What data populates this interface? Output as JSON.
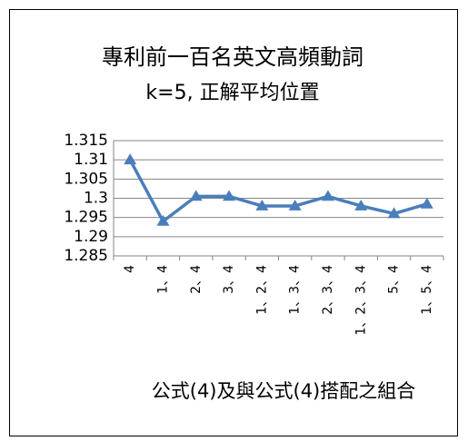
{
  "chart_data": {
    "type": "line",
    "title": "專利前一百名英文高頻動詞",
    "subtitle": "k=5, 正解平均位置",
    "x_label": "公式(4)及與公式(4)搭配之組合",
    "categories": [
      "4",
      "1、4",
      "2、4",
      "3、4",
      "1、2、4",
      "1、3、4",
      "2、3、4",
      "1、2、3、4",
      "5、4",
      "1、5、4"
    ],
    "series": [
      {
        "name": "k=5",
        "color": "#4a7ebb",
        "values": [
          1.31,
          1.294,
          1.3005,
          1.3005,
          1.298,
          1.298,
          1.3005,
          1.298,
          1.296,
          1.2985
        ]
      }
    ],
    "ylim": [
      1.285,
      1.315
    ],
    "yticks": [
      1.285,
      1.29,
      1.295,
      1.3,
      1.305,
      1.31,
      1.315
    ],
    "grid": true
  }
}
